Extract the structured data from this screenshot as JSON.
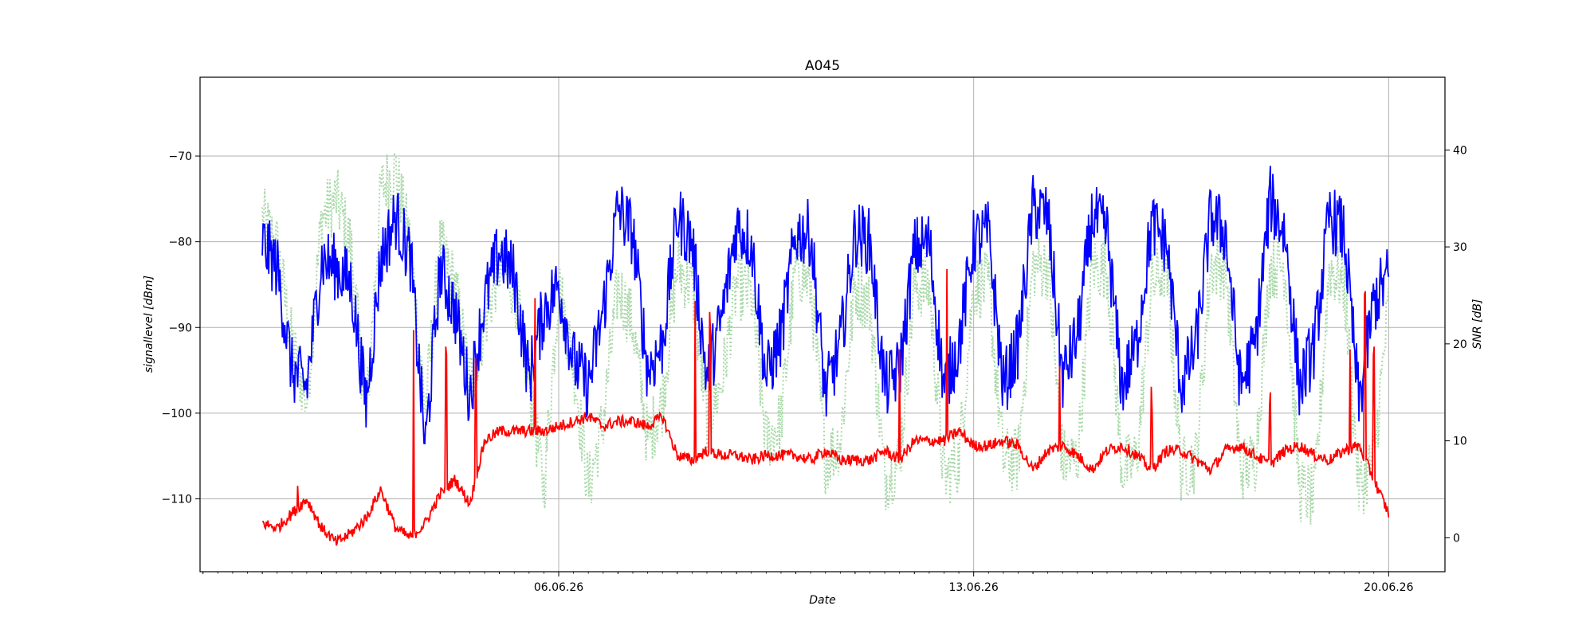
{
  "chart_data": {
    "type": "line",
    "title": "A045",
    "xlabel": "Date",
    "ylabel_left": "signallevel [dBm]",
    "ylabel_right": "SNR [dB]",
    "x_ticks": [
      "06.06.26",
      "13.06.26",
      "20.06.26"
    ],
    "x_tick_values": [
      6,
      13,
      20
    ],
    "x_range": [
      -0.05,
      20.95
    ],
    "y_left_range": [
      -118.5,
      -60.8
    ],
    "y_left_ticks": [
      -110,
      -100,
      -90,
      -80,
      -70
    ],
    "y_right_range": [
      -3.5,
      47.5
    ],
    "y_right_ticks": [
      0,
      10,
      20,
      30,
      40
    ],
    "grid": true,
    "series": [
      {
        "axis": "left",
        "color": "#0000ff",
        "style": "solid",
        "x": [
          1.0,
          1.25,
          1.5,
          1.75,
          2.0,
          2.25,
          2.5,
          2.75,
          3.0,
          3.25,
          3.5,
          3.75,
          4.0,
          4.25,
          4.5,
          4.75,
          5.0,
          5.25,
          5.5,
          5.75,
          6.0,
          6.25,
          6.5,
          6.75,
          7.0,
          7.25,
          7.5,
          7.75,
          8.0,
          8.25,
          8.5,
          8.75,
          9.0,
          9.25,
          9.5,
          9.75,
          10.0,
          10.25,
          10.5,
          10.75,
          11.0,
          11.25,
          11.5,
          11.75,
          12.0,
          12.25,
          12.5,
          12.75,
          13.0,
          13.25,
          13.5,
          13.75,
          14.0,
          14.25,
          14.5,
          14.75,
          15.0,
          15.25,
          15.5,
          15.75,
          16.0,
          16.25,
          16.5,
          16.75,
          17.0,
          17.25,
          17.5,
          17.75,
          18.0,
          18.25,
          18.5,
          18.75,
          19.0,
          19.25,
          19.5,
          19.75,
          20.0
        ],
        "values": [
          -80,
          -83,
          -95,
          -97,
          -82,
          -83,
          -85,
          -99,
          -82,
          -77,
          -82,
          -104,
          -83,
          -88,
          -98,
          -87,
          -81,
          -84,
          -96,
          -88,
          -85,
          -94,
          -97,
          -88,
          -76,
          -79,
          -95,
          -92,
          -77,
          -80,
          -96,
          -89,
          -78,
          -80,
          -96,
          -91,
          -79,
          -79,
          -98,
          -92,
          -79,
          -80,
          -97,
          -95,
          -81,
          -80,
          -97,
          -92,
          -80,
          -79,
          -97,
          -92,
          -76,
          -77,
          -96,
          -91,
          -77,
          -79,
          -97,
          -92,
          -78,
          -80,
          -97,
          -92,
          -77,
          -79,
          -97,
          -92,
          -75,
          -79,
          -97,
          -92,
          -77,
          -79,
          -99,
          -87,
          -84
        ],
        "noise": 4.0
      },
      {
        "axis": "right",
        "color": "#a8d8a8",
        "style": "dotted",
        "x": [
          1.0,
          1.25,
          1.5,
          1.75,
          2.0,
          2.25,
          2.5,
          2.75,
          3.0,
          3.25,
          3.5,
          3.75,
          4.0,
          4.25,
          4.5,
          4.75,
          5.0,
          5.25,
          5.5,
          5.75,
          6.0,
          6.25,
          6.5,
          6.75,
          7.0,
          7.25,
          7.5,
          7.75,
          8.0,
          8.25,
          8.5,
          8.75,
          9.0,
          9.25,
          9.5,
          9.75,
          10.0,
          10.25,
          10.5,
          10.75,
          11.0,
          11.25,
          11.5,
          11.75,
          12.0,
          12.25,
          12.5,
          12.75,
          13.0,
          13.25,
          13.5,
          13.75,
          14.0,
          14.25,
          14.5,
          14.75,
          15.0,
          15.25,
          15.5,
          15.75,
          16.0,
          16.25,
          16.5,
          16.75,
          17.0,
          17.25,
          17.5,
          17.75,
          18.0,
          18.25,
          18.5,
          18.75,
          19.0,
          19.25,
          19.5,
          19.75,
          20.0
        ],
        "values": [
          33,
          30,
          20,
          14,
          33,
          35,
          30,
          12,
          36,
          38,
          30,
          13,
          30,
          26,
          16,
          22,
          28,
          26,
          16,
          5,
          26,
          18,
          5,
          12,
          26,
          22,
          10,
          14,
          28,
          26,
          12,
          16,
          26,
          25,
          10,
          12,
          28,
          26,
          8,
          10,
          26,
          24,
          6,
          8,
          26,
          26,
          6,
          8,
          26,
          26,
          8,
          8,
          28,
          28,
          8,
          8,
          28,
          28,
          7,
          8,
          26,
          28,
          7,
          8,
          28,
          28,
          7,
          8,
          28,
          28,
          5,
          4,
          28,
          26,
          5,
          8,
          24
        ],
        "noise": 3.5
      },
      {
        "axis": "right",
        "color": "#ff0000",
        "style": "solid",
        "x": [
          1.0,
          1.25,
          1.5,
          1.75,
          2.0,
          2.25,
          2.5,
          2.75,
          3.0,
          3.25,
          3.5,
          3.75,
          4.0,
          4.25,
          4.5,
          4.75,
          5.0,
          5.25,
          5.5,
          5.75,
          6.0,
          6.25,
          6.5,
          6.75,
          7.0,
          7.25,
          7.5,
          7.75,
          8.0,
          8.25,
          8.5,
          8.75,
          9.0,
          9.25,
          9.5,
          9.75,
          10.0,
          10.25,
          10.5,
          10.75,
          11.0,
          11.25,
          11.5,
          11.75,
          12.0,
          12.25,
          12.5,
          12.75,
          13.0,
          13.25,
          13.5,
          13.75,
          14.0,
          14.25,
          14.5,
          14.75,
          15.0,
          15.25,
          15.5,
          15.75,
          16.0,
          16.25,
          16.5,
          16.75,
          17.0,
          17.25,
          17.5,
          17.75,
          18.0,
          18.25,
          18.5,
          18.75,
          19.0,
          19.25,
          19.5,
          19.75,
          20.0
        ],
        "values": [
          1.5,
          1.0,
          2.5,
          4.0,
          1.0,
          -0.5,
          0.5,
          2.0,
          5.0,
          1.0,
          0.0,
          1.5,
          4.5,
          6.0,
          3.5,
          10.0,
          11.0,
          11.0,
          11.0,
          11.0,
          11.5,
          12.0,
          12.5,
          11.5,
          12.0,
          12.0,
          11.5,
          12.5,
          8.5,
          8.0,
          9.0,
          8.5,
          8.5,
          8.0,
          8.5,
          8.5,
          8.5,
          8.0,
          9.0,
          8.0,
          8.0,
          8.0,
          9.0,
          8.0,
          10.0,
          10.0,
          10.0,
          11.0,
          9.5,
          9.5,
          10.0,
          9.5,
          7.0,
          9.0,
          9.5,
          8.5,
          7.0,
          9.0,
          9.5,
          8.5,
          7.0,
          9.0,
          9.0,
          8.0,
          7.0,
          9.0,
          9.5,
          8.5,
          7.5,
          9.0,
          9.5,
          8.5,
          8.0,
          9.0,
          9.5,
          6.0,
          2.5
        ],
        "spikes": [
          [
            1.6,
            6.5
          ],
          [
            3.55,
            22.0
          ],
          [
            4.1,
            22.0
          ],
          [
            4.6,
            20.0
          ],
          [
            5.6,
            25.0
          ],
          [
            8.3,
            25.0
          ],
          [
            8.55,
            25.0
          ],
          [
            11.75,
            20.0
          ],
          [
            12.55,
            28.0
          ],
          [
            14.45,
            18.0
          ],
          [
            16.0,
            17.0
          ],
          [
            18.0,
            17.0
          ],
          [
            19.35,
            20.0
          ],
          [
            19.6,
            28.0
          ],
          [
            19.75,
            22.0
          ]
        ],
        "noise": 0.6
      }
    ]
  }
}
